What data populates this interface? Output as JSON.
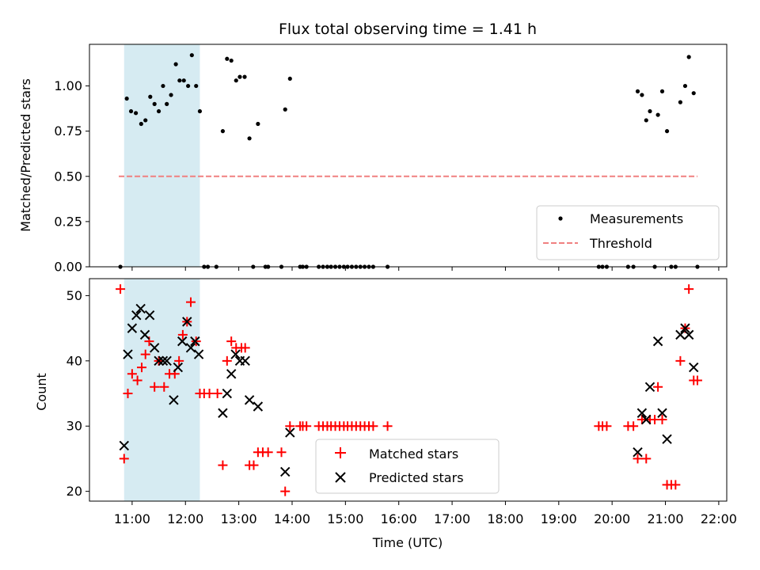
{
  "chart_data": [
    {
      "type": "scatter",
      "title": "Flux total observing time = 1.41 h",
      "xlabel": "",
      "ylabel": "Matched/Predicted stars",
      "xlim": [
        10.2,
        22.15
      ],
      "ylim": [
        0,
        1.23
      ],
      "yticks": [
        0,
        0.25,
        0.5,
        0.75,
        1.0
      ],
      "ytick_labels": [
        "0.00",
        "0.25",
        "0.50",
        "0.75",
        "1.00"
      ],
      "shaded_interval": [
        10.85,
        12.27
      ],
      "series": [
        {
          "name": "Measurements",
          "marker": "dot",
          "color": "#000000",
          "points": [
            [
              10.78,
              0
            ],
            [
              10.9,
              0.93
            ],
            [
              10.98,
              0.86
            ],
            [
              11.07,
              0.85
            ],
            [
              11.17,
              0.79
            ],
            [
              11.25,
              0.81
            ],
            [
              11.34,
              0.94
            ],
            [
              11.42,
              0.9
            ],
            [
              11.5,
              0.86
            ],
            [
              11.58,
              1.0
            ],
            [
              11.65,
              0.9
            ],
            [
              11.73,
              0.95
            ],
            [
              11.82,
              1.12
            ],
            [
              11.89,
              1.03
            ],
            [
              11.97,
              1.03
            ],
            [
              12.05,
              1.0
            ],
            [
              12.12,
              1.17
            ],
            [
              12.2,
              1.0
            ],
            [
              12.27,
              0.86
            ],
            [
              12.35,
              0
            ],
            [
              12.42,
              0
            ],
            [
              12.58,
              0
            ],
            [
              12.7,
              0.75
            ],
            [
              12.78,
              1.15
            ],
            [
              12.86,
              1.14
            ],
            [
              12.95,
              1.03
            ],
            [
              13.02,
              1.05
            ],
            [
              13.11,
              1.05
            ],
            [
              13.2,
              0.71
            ],
            [
              13.27,
              0
            ],
            [
              13.36,
              0.79
            ],
            [
              13.5,
              0
            ],
            [
              13.55,
              0
            ],
            [
              13.8,
              0
            ],
            [
              13.87,
              0.87
            ],
            [
              13.96,
              1.04
            ],
            [
              14.15,
              0
            ],
            [
              14.2,
              0
            ],
            [
              14.27,
              0
            ],
            [
              14.5,
              0
            ],
            [
              14.58,
              0
            ],
            [
              14.66,
              0
            ],
            [
              14.73,
              0
            ],
            [
              14.81,
              0
            ],
            [
              14.89,
              0
            ],
            [
              14.97,
              0
            ],
            [
              15.04,
              0
            ],
            [
              15.12,
              0
            ],
            [
              15.2,
              0
            ],
            [
              15.28,
              0
            ],
            [
              15.36,
              0
            ],
            [
              15.44,
              0
            ],
            [
              15.52,
              0
            ],
            [
              15.79,
              0
            ],
            [
              19.75,
              0
            ],
            [
              19.82,
              0
            ],
            [
              19.9,
              0
            ],
            [
              20.3,
              0
            ],
            [
              20.4,
              0
            ],
            [
              20.48,
              0.97
            ],
            [
              20.56,
              0.95
            ],
            [
              20.64,
              0.81
            ],
            [
              20.71,
              0.86
            ],
            [
              20.8,
              0
            ],
            [
              20.86,
              0.84
            ],
            [
              20.94,
              0.97
            ],
            [
              21.03,
              0.75
            ],
            [
              21.11,
              0
            ],
            [
              21.19,
              0
            ],
            [
              21.28,
              0.91
            ],
            [
              21.37,
              1.0
            ],
            [
              21.44,
              1.16
            ],
            [
              21.53,
              0.96
            ],
            [
              21.6,
              0
            ]
          ]
        },
        {
          "name": "Threshold",
          "style": "dashed",
          "color": "#f08080",
          "points": [
            [
              10.75,
              0.5
            ],
            [
              21.6,
              0.5
            ]
          ]
        }
      ],
      "legend": {
        "position": "lower right",
        "entries": [
          "Measurements",
          "Threshold"
        ]
      }
    },
    {
      "type": "scatter",
      "title": "",
      "xlabel": "Time (UTC)",
      "ylabel": "Count",
      "xlim": [
        10.2,
        22.15
      ],
      "ylim": [
        18.5,
        52.6
      ],
      "xticks": [
        11,
        12,
        13,
        14,
        15,
        16,
        17,
        18,
        19,
        20,
        21,
        22
      ],
      "xtick_labels": [
        "11:00",
        "12:00",
        "13:00",
        "14:00",
        "15:00",
        "16:00",
        "17:00",
        "18:00",
        "19:00",
        "20:00",
        "21:00",
        "22:00"
      ],
      "yticks": [
        20,
        30,
        40,
        50
      ],
      "ytick_labels": [
        "20",
        "30",
        "40",
        "50"
      ],
      "shaded_interval": [
        10.85,
        12.27
      ],
      "series": [
        {
          "name": "Matched stars",
          "marker": "plus",
          "color": "#ff0000",
          "points": [
            [
              10.78,
              51
            ],
            [
              10.85,
              25
            ],
            [
              10.92,
              35
            ],
            [
              11.0,
              38
            ],
            [
              11.1,
              37
            ],
            [
              11.18,
              39
            ],
            [
              11.25,
              41
            ],
            [
              11.32,
              43
            ],
            [
              11.42,
              36
            ],
            [
              11.5,
              40
            ],
            [
              11.6,
              36
            ],
            [
              11.7,
              38
            ],
            [
              11.8,
              38
            ],
            [
              11.88,
              40
            ],
            [
              11.95,
              44
            ],
            [
              12.03,
              46
            ],
            [
              12.1,
              49
            ],
            [
              12.2,
              43
            ],
            [
              12.27,
              35
            ],
            [
              12.35,
              35
            ],
            [
              12.45,
              35
            ],
            [
              12.6,
              35
            ],
            [
              12.7,
              24
            ],
            [
              12.78,
              40
            ],
            [
              12.86,
              43
            ],
            [
              12.95,
              42
            ],
            [
              13.05,
              42
            ],
            [
              13.12,
              42
            ],
            [
              13.2,
              24
            ],
            [
              13.28,
              24
            ],
            [
              13.36,
              26
            ],
            [
              13.45,
              26
            ],
            [
              13.55,
              26
            ],
            [
              13.8,
              26
            ],
            [
              13.87,
              20
            ],
            [
              13.96,
              30
            ],
            [
              14.15,
              30
            ],
            [
              14.2,
              30
            ],
            [
              14.27,
              30
            ],
            [
              14.5,
              30
            ],
            [
              14.58,
              30
            ],
            [
              14.66,
              30
            ],
            [
              14.73,
              30
            ],
            [
              14.81,
              30
            ],
            [
              14.89,
              30
            ],
            [
              14.97,
              30
            ],
            [
              15.04,
              30
            ],
            [
              15.12,
              30
            ],
            [
              15.2,
              30
            ],
            [
              15.28,
              30
            ],
            [
              15.36,
              30
            ],
            [
              15.44,
              30
            ],
            [
              15.52,
              30
            ],
            [
              15.79,
              30
            ],
            [
              19.75,
              30
            ],
            [
              19.82,
              30
            ],
            [
              19.9,
              30
            ],
            [
              20.3,
              30
            ],
            [
              20.4,
              30
            ],
            [
              20.48,
              25
            ],
            [
              20.56,
              31
            ],
            [
              20.64,
              25
            ],
            [
              20.71,
              31
            ],
            [
              20.8,
              31
            ],
            [
              20.86,
              36
            ],
            [
              20.94,
              31
            ],
            [
              21.03,
              21
            ],
            [
              21.11,
              21
            ],
            [
              21.19,
              21
            ],
            [
              21.28,
              40
            ],
            [
              21.37,
              45
            ],
            [
              21.44,
              51
            ],
            [
              21.53,
              37
            ],
            [
              21.6,
              37
            ]
          ]
        },
        {
          "name": "Predicted stars",
          "marker": "x",
          "color": "#000000",
          "points": [
            [
              10.85,
              27
            ],
            [
              10.92,
              41
            ],
            [
              11.0,
              45
            ],
            [
              11.08,
              47
            ],
            [
              11.16,
              48
            ],
            [
              11.24,
              44
            ],
            [
              11.33,
              47
            ],
            [
              11.42,
              42
            ],
            [
              11.5,
              40
            ],
            [
              11.58,
              40
            ],
            [
              11.65,
              40
            ],
            [
              11.78,
              34
            ],
            [
              11.86,
              39
            ],
            [
              11.94,
              43
            ],
            [
              12.03,
              46
            ],
            [
              12.1,
              42
            ],
            [
              12.18,
              43
            ],
            [
              12.25,
              41
            ],
            [
              12.7,
              32
            ],
            [
              12.78,
              35
            ],
            [
              12.86,
              38
            ],
            [
              12.94,
              41
            ],
            [
              13.02,
              40
            ],
            [
              13.12,
              40
            ],
            [
              13.2,
              34
            ],
            [
              13.36,
              33
            ],
            [
              13.87,
              23
            ],
            [
              13.96,
              29
            ],
            [
              20.48,
              26
            ],
            [
              20.56,
              32
            ],
            [
              20.64,
              31
            ],
            [
              20.71,
              36
            ],
            [
              20.86,
              43
            ],
            [
              20.94,
              32
            ],
            [
              21.03,
              28
            ],
            [
              21.28,
              44
            ],
            [
              21.37,
              45
            ],
            [
              21.44,
              44
            ],
            [
              21.53,
              39
            ]
          ]
        }
      ],
      "legend": {
        "position": "lower center",
        "entries": [
          "Matched stars",
          "Predicted stars"
        ]
      }
    }
  ],
  "colors": {
    "shade": "#add8e6",
    "threshold": "#f08080",
    "matched": "#ff0000",
    "predicted": "#000000",
    "measurement": "#000000"
  }
}
